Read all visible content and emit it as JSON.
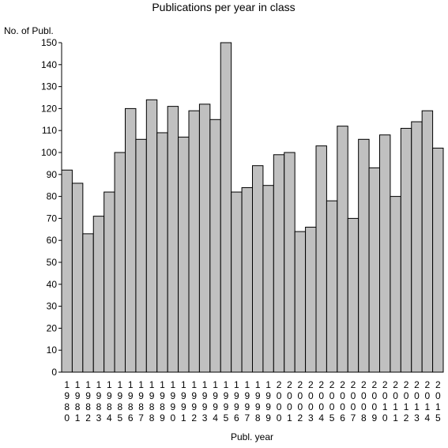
{
  "chart_data": {
    "type": "bar",
    "title": "Publications per year in class",
    "ylabel": "No. of Publ.",
    "xlabel": "Publ. year",
    "ylim": [
      0,
      150
    ],
    "yticks": [
      0,
      10,
      20,
      30,
      40,
      50,
      60,
      70,
      80,
      90,
      100,
      110,
      120,
      130,
      140,
      150
    ],
    "categories": [
      "1980",
      "1981",
      "1982",
      "1983",
      "1984",
      "1985",
      "1986",
      "1987",
      "1988",
      "1989",
      "1990",
      "1991",
      "1992",
      "1993",
      "1994",
      "1995",
      "1996",
      "1997",
      "1998",
      "1999",
      "2000",
      "2001",
      "2002",
      "2003",
      "2004",
      "2005",
      "2006",
      "2007",
      "2008",
      "2009",
      "2010",
      "2011",
      "2012",
      "2013",
      "2014",
      "2015"
    ],
    "values": [
      92,
      86,
      63,
      71,
      82,
      100,
      120,
      106,
      124,
      109,
      121,
      107,
      119,
      122,
      115,
      150,
      82,
      84,
      94,
      85,
      99,
      100,
      64,
      66,
      103,
      78,
      112,
      70,
      106,
      93,
      108,
      80,
      111,
      114,
      119,
      102
    ],
    "bar_color": "#c0c0c0",
    "grid": false
  }
}
